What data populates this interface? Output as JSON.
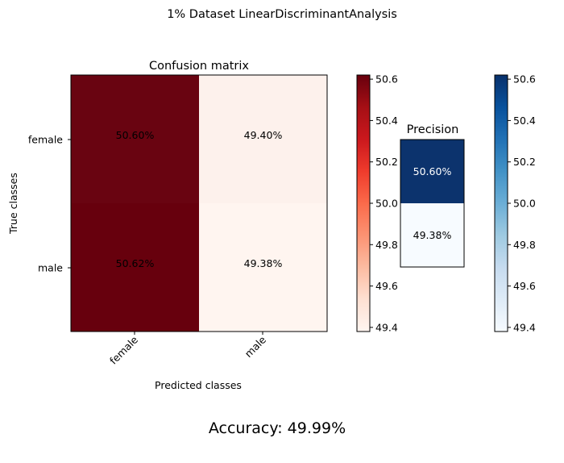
{
  "figure": {
    "suptitle": "1% Dataset LinearDiscriminantAnalysis",
    "accuracy_text": "Accuracy: 49.99%"
  },
  "chart_data": [
    {
      "type": "heatmap",
      "title": "Confusion matrix",
      "xlabel": "Predicted classes",
      "ylabel": "True classes",
      "x_categories": [
        "female",
        "male"
      ],
      "y_categories": [
        "female",
        "male"
      ],
      "values": [
        [
          50.6,
          49.4
        ],
        [
          50.62,
          49.38
        ]
      ],
      "cell_labels": [
        [
          "50.60%",
          "49.40%"
        ],
        [
          "50.62%",
          "49.38%"
        ]
      ],
      "colormap": "Reds",
      "colorbar": {
        "range": [
          49.38,
          50.62
        ],
        "ticks": [
          "49.4",
          "49.6",
          "49.8",
          "50.0",
          "50.2",
          "50.4",
          "50.6"
        ]
      }
    },
    {
      "type": "heatmap",
      "title": "Precision",
      "values": [
        [
          50.6
        ],
        [
          49.38
        ]
      ],
      "cell_labels": [
        [
          "50.60%"
        ],
        [
          "49.38%"
        ]
      ],
      "colormap": "Blues",
      "colorbar": {
        "range": [
          49.38,
          50.62
        ],
        "ticks": [
          "49.4",
          "49.6",
          "49.8",
          "50.0",
          "50.2",
          "50.4",
          "50.6"
        ]
      }
    }
  ],
  "colors": {
    "reds_low": "#fff5f0",
    "reds_high": "#67000d",
    "blues_low": "#f7fbff",
    "blues_high": "#08306b"
  }
}
